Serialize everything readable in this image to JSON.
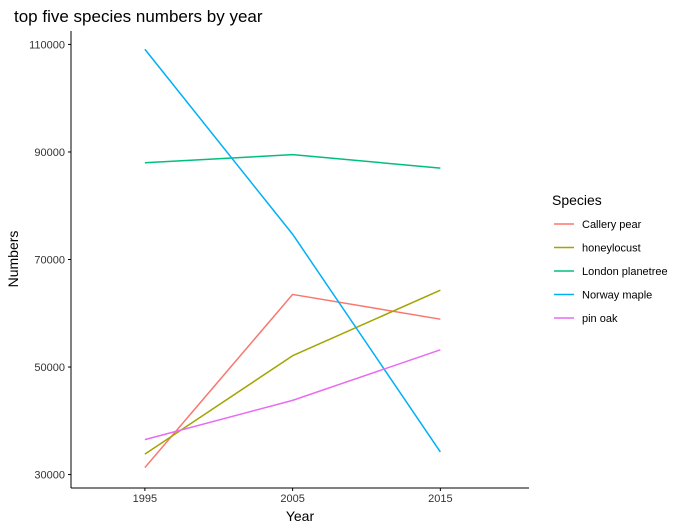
{
  "chart_data": {
    "type": "line",
    "title": "top five species numbers by year",
    "xlabel": "Year",
    "ylabel": "Numbers",
    "x": [
      1995,
      2005,
      2015
    ],
    "x_ticks": [
      "1995",
      "2005",
      "2015"
    ],
    "xlim": [
      1990,
      2021
    ],
    "y_ticks": [
      "30000",
      "50000",
      "70000",
      "90000",
      "110000"
    ],
    "ylim": [
      27500,
      112500
    ],
    "grid": false,
    "legend_position": "right",
    "legend_title": "Species",
    "series": [
      {
        "name": "Callery pear",
        "color": "#F8766D",
        "values": [
          31300,
          63500,
          58900
        ]
      },
      {
        "name": "honeylocust",
        "color": "#A3A500",
        "values": [
          33800,
          52100,
          64300
        ]
      },
      {
        "name": "London planetree",
        "color": "#00BF7D",
        "values": [
          88000,
          89500,
          87000
        ]
      },
      {
        "name": "Norway maple",
        "color": "#00B0F6",
        "values": [
          109100,
          74700,
          34200
        ]
      },
      {
        "name": "pin oak",
        "color": "#E76BF3",
        "values": [
          36500,
          43800,
          53200
        ]
      }
    ]
  }
}
